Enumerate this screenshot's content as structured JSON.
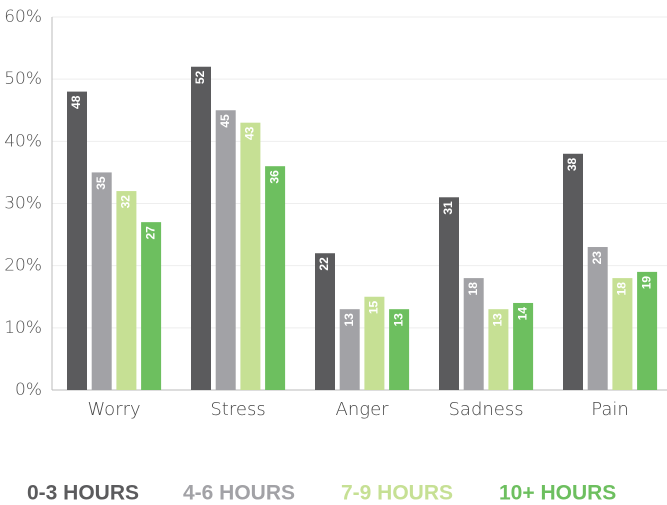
{
  "chart_data": {
    "type": "bar",
    "categories": [
      "Worry",
      "Stress",
      "Anger",
      "Sadness",
      "Pain"
    ],
    "series": [
      {
        "name": "0-3 HOURS",
        "color": "#5b5b5d",
        "values": [
          48,
          52,
          22,
          31,
          38
        ]
      },
      {
        "name": "4-6 HOURS",
        "color": "#a2a2a6",
        "values": [
          35,
          45,
          13,
          18,
          23
        ]
      },
      {
        "name": "7-9 HOURS",
        "color": "#c6e094",
        "values": [
          32,
          43,
          15,
          13,
          18
        ]
      },
      {
        "name": "10+ HOURS",
        "color": "#6dbf5f",
        "values": [
          27,
          36,
          13,
          14,
          19
        ]
      }
    ],
    "ylim": [
      0,
      60
    ],
    "yticks": [
      {
        "value": 0,
        "label": "0%"
      },
      {
        "value": 10,
        "label": "10%"
      },
      {
        "value": 20,
        "label": "20%"
      },
      {
        "value": 30,
        "label": "30%"
      },
      {
        "value": 40,
        "label": "40%"
      },
      {
        "value": 50,
        "label": "50%"
      },
      {
        "value": 60,
        "label": "60%"
      }
    ],
    "grid": true,
    "legend": "bottom"
  }
}
